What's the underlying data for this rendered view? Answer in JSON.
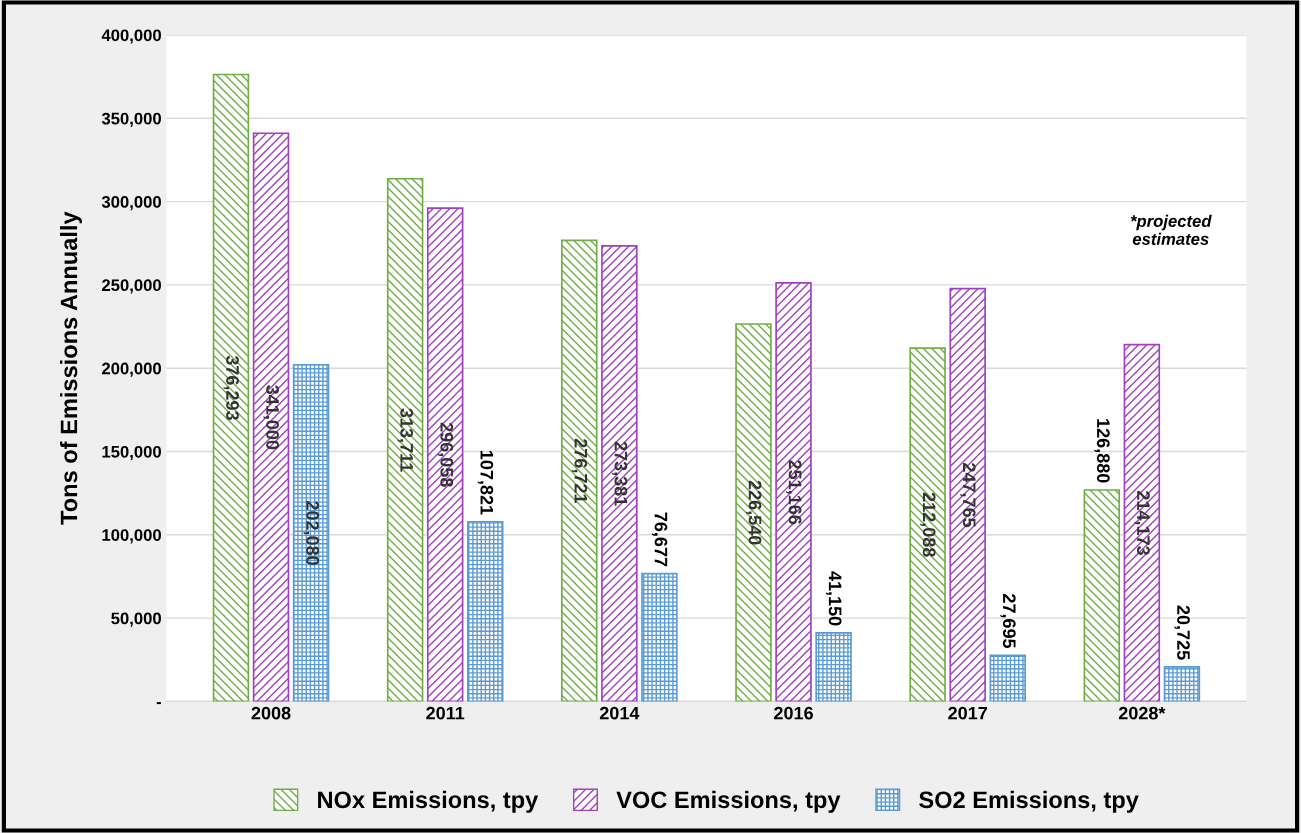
{
  "chart_data": {
    "type": "bar",
    "ylabel": "Tons of Emissions Annually",
    "categories": [
      "2008",
      "2011",
      "2014",
      "2016",
      "2017",
      "2028*"
    ],
    "series": [
      {
        "name": "NOx Emissions, tpy",
        "color": "#70ad47",
        "values": [
          376293,
          313711,
          276721,
          226540,
          212088,
          126880
        ],
        "value_labels": [
          "376,293",
          "313,711",
          "276,721",
          "226,540",
          "212,088",
          "126,880"
        ]
      },
      {
        "name": "VOC Emissions, tpy",
        "color": "#a040c0",
        "values": [
          341000,
          296058,
          273381,
          251166,
          247765,
          214173
        ],
        "value_labels": [
          "341,000",
          "296,058",
          "273,381",
          "251,166",
          "247,765",
          "214,173"
        ]
      },
      {
        "name": "SO2 Emissions, tpy",
        "color": "#5b9bd5",
        "values": [
          202080,
          107821,
          76677,
          41150,
          27695,
          20725
        ],
        "value_labels": [
          "202,080",
          "107,821",
          "76,677",
          "41,150",
          "27,695",
          "20,725"
        ]
      }
    ],
    "ylim": [
      0,
      400000
    ],
    "yticks": [
      {
        "value": 0,
        "label": "-"
      },
      {
        "value": 50000,
        "label": "50,000"
      },
      {
        "value": 100000,
        "label": "100,000"
      },
      {
        "value": 150000,
        "label": "150,000"
      },
      {
        "value": 200000,
        "label": "200,000"
      },
      {
        "value": 250000,
        "label": "250,000"
      },
      {
        "value": 300000,
        "label": "300,000"
      },
      {
        "value": 350000,
        "label": "350,000"
      },
      {
        "value": 400000,
        "label": "400,000"
      }
    ],
    "grid": "y",
    "legend": "bottom",
    "annotations": [
      "*projected\nestimates"
    ]
  }
}
